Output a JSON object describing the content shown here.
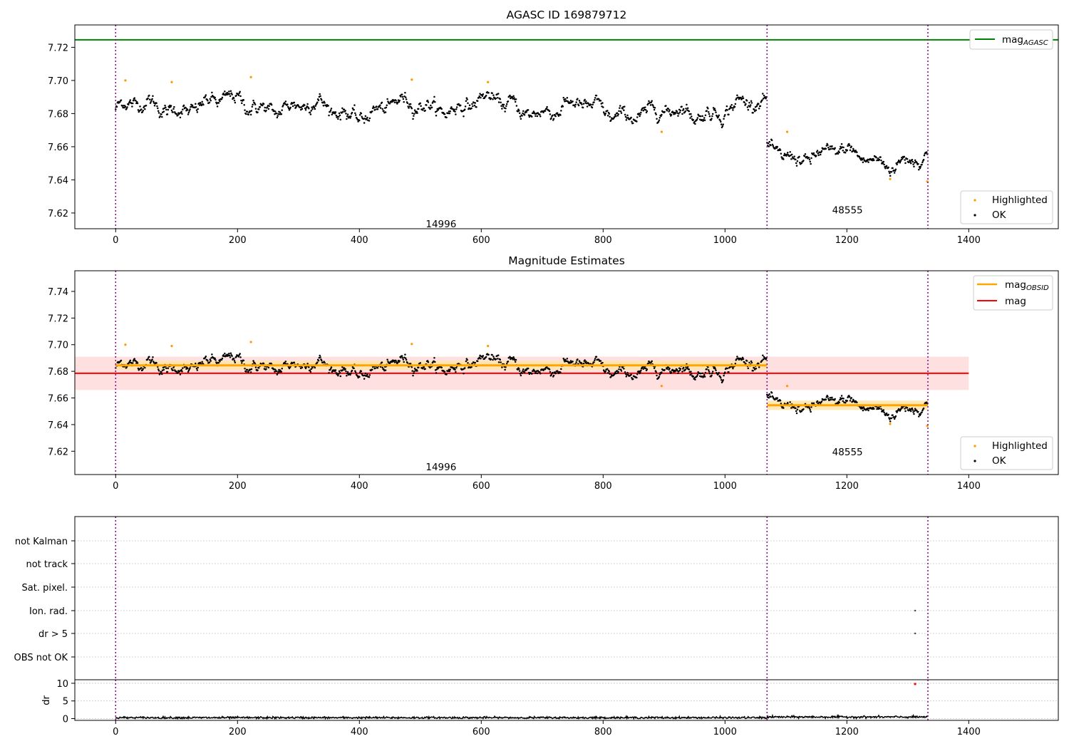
{
  "chart_data": [
    {
      "type": "scatter",
      "title": "AGASC ID 169879712",
      "xlim": [
        -67,
        1547
      ],
      "ylim": [
        7.6105,
        7.7335
      ],
      "xticks": [
        0,
        200,
        400,
        600,
        800,
        1000,
        1200,
        1400
      ],
      "yticks": [
        7.62,
        7.64,
        7.66,
        7.68,
        7.7,
        7.72
      ],
      "hline": {
        "name": "mag_AGASC",
        "y": 7.7245,
        "color": "#008000"
      },
      "obs_boundaries": [
        0,
        1069,
        1333
      ],
      "obs_labels": [
        {
          "text": "14996",
          "x": 534,
          "y": 7.6135
        },
        {
          "text": "48555",
          "x": 1201,
          "y": 7.622
        }
      ],
      "segments": [
        {
          "x_start": 0,
          "x_end": 1069,
          "center": 7.6845,
          "drift": [
            [
              0,
              7.683
            ],
            [
              200,
              7.686
            ],
            [
              300,
              7.684
            ],
            [
              400,
              7.681
            ],
            [
              500,
              7.685
            ],
            [
              600,
              7.686
            ],
            [
              700,
              7.683
            ],
            [
              800,
              7.682
            ],
            [
              900,
              7.679
            ],
            [
              1000,
              7.684
            ],
            [
              1069,
              7.685
            ]
          ],
          "spread": 0.0045,
          "n": 1069
        },
        {
          "x_start": 1069,
          "x_end": 1333,
          "center": 7.6545,
          "drift": [
            [
              1069,
              7.657
            ],
            [
              1150,
              7.655
            ],
            [
              1250,
              7.653
            ],
            [
              1333,
              7.651
            ]
          ],
          "spread": 0.0042,
          "n": 265
        }
      ],
      "highlighted": [
        [
          16,
          7.7
        ],
        [
          92,
          7.699
        ],
        [
          222,
          7.702
        ],
        [
          486,
          7.7005
        ],
        [
          611,
          7.699
        ],
        [
          896,
          7.669
        ],
        [
          1102,
          7.669
        ],
        [
          1271,
          7.6405
        ],
        [
          1332,
          7.639
        ]
      ],
      "legend_lines": [
        {
          "name": "mag_AGASC",
          "color": "#008000"
        }
      ],
      "legend_points": [
        {
          "name": "Highlighted",
          "color": "#ff9800"
        },
        {
          "name": "OK",
          "color": "#000000"
        }
      ]
    },
    {
      "type": "scatter",
      "title": "Magnitude Estimates",
      "xlim": [
        -67,
        1547
      ],
      "ylim": [
        7.6025,
        7.7555
      ],
      "xticks": [
        0,
        200,
        400,
        600,
        800,
        1000,
        1200,
        1400
      ],
      "yticks": [
        7.62,
        7.64,
        7.66,
        7.68,
        7.7,
        7.72,
        7.74
      ],
      "mag_line": {
        "name": "mag",
        "y": 7.6785,
        "x_range": [
          -67,
          1400
        ],
        "band": [
          7.666,
          7.691
        ],
        "color": "#ff0000",
        "band_color": "#ffe0e0"
      },
      "obsid_lines": [
        {
          "x_range": [
            0,
            1069
          ],
          "y": 7.6845,
          "band": [
            7.681,
            7.688
          ]
        },
        {
          "x_range": [
            1069,
            1333
          ],
          "y": 7.6545,
          "band": [
            7.651,
            7.658
          ]
        }
      ],
      "obs_boundaries": [
        0,
        1069,
        1333
      ],
      "obs_labels": [
        {
          "text": "14996",
          "x": 534,
          "y": 7.6085
        },
        {
          "text": "48555",
          "x": 1201,
          "y": 7.6195
        }
      ],
      "legend_lines": [
        {
          "name": "mag_OBSID",
          "color": "#ffa500"
        },
        {
          "name": "mag",
          "color": "#ff0000"
        }
      ],
      "legend_points": [
        {
          "name": "Highlighted",
          "color": "#ff9800"
        },
        {
          "name": "OK",
          "color": "#000000"
        }
      ]
    },
    {
      "type": "scatter",
      "title": "",
      "xlim": [
        -67,
        1547
      ],
      "categories": [
        "not Kalman",
        "not track",
        "Sat. pixel.",
        "Ion. rad.",
        "dr > 5",
        "OBS not OK"
      ],
      "flag_points": [
        {
          "category": "Ion. rad.",
          "x": 1312
        },
        {
          "category": "dr > 5",
          "x": 1312
        }
      ],
      "obs_boundaries": [
        0,
        1069,
        1333
      ]
    },
    {
      "type": "line",
      "ylabel": "dr",
      "xlim": [
        -67,
        1547
      ],
      "ylim": [
        -0.5,
        11
      ],
      "yticks": [
        0,
        5,
        10
      ],
      "xticks": [
        0,
        200,
        400,
        600,
        800,
        1000,
        1200,
        1400
      ],
      "dr_level": [
        [
          0,
          0.25
        ],
        [
          1069,
          0.25
        ],
        [
          1070,
          0.45
        ],
        [
          1333,
          0.45
        ]
      ],
      "outlier": {
        "x": 1312,
        "y": 9.8,
        "color": "#ff0000"
      },
      "obs_boundaries": [
        0,
        1069,
        1333
      ]
    }
  ]
}
